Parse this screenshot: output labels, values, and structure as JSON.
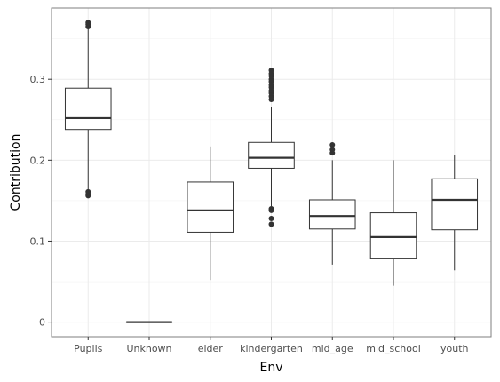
{
  "chart_data": {
    "type": "box",
    "xlabel": "Env",
    "ylabel": "Contribution",
    "ylim": [
      -0.018,
      0.388
    ],
    "y_ticks": [
      0,
      0.1,
      0.2,
      0.3
    ],
    "y_tick_labels": [
      "0",
      "0.1",
      "0.2",
      "0.3"
    ],
    "grid": true,
    "categories": [
      "Pupils",
      "Unknown",
      "elder",
      "kindergarten",
      "mid_age",
      "mid_school",
      "youth"
    ],
    "boxes": [
      {
        "category": "Pupils",
        "whisker_low": 0.163,
        "q1": 0.238,
        "median": 0.252,
        "q3": 0.289,
        "whisker_high": 0.362,
        "outliers": [
          0.156,
          0.158,
          0.161,
          0.365,
          0.368,
          0.37
        ]
      },
      {
        "category": "Unknown",
        "whisker_low": 0.0,
        "q1": 0.0,
        "median": 0.0,
        "q3": 0.0,
        "whisker_high": 0.0,
        "outliers": []
      },
      {
        "category": "elder",
        "whisker_low": 0.052,
        "q1": 0.111,
        "median": 0.138,
        "q3": 0.173,
        "whisker_high": 0.217,
        "outliers": []
      },
      {
        "category": "kindergarten",
        "whisker_low": 0.143,
        "q1": 0.19,
        "median": 0.203,
        "q3": 0.222,
        "whisker_high": 0.266,
        "outliers": [
          0.121,
          0.128,
          0.138,
          0.14,
          0.275,
          0.279,
          0.283,
          0.286,
          0.29,
          0.293,
          0.297,
          0.3,
          0.304,
          0.307,
          0.311
        ]
      },
      {
        "category": "mid_age",
        "whisker_low": 0.071,
        "q1": 0.115,
        "median": 0.131,
        "q3": 0.151,
        "whisker_high": 0.2,
        "outliers": [
          0.209,
          0.213,
          0.219
        ]
      },
      {
        "category": "mid_school",
        "whisker_low": 0.045,
        "q1": 0.079,
        "median": 0.105,
        "q3": 0.135,
        "whisker_high": 0.2,
        "outliers": []
      },
      {
        "category": "youth",
        "whisker_low": 0.064,
        "q1": 0.114,
        "median": 0.151,
        "q3": 0.177,
        "whisker_high": 0.206,
        "outliers": []
      }
    ]
  }
}
